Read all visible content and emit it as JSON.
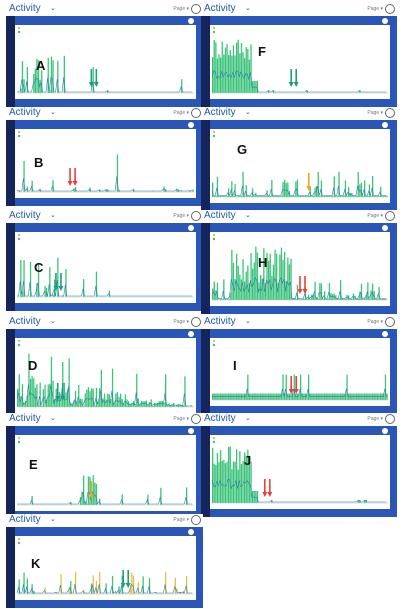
{
  "colors": {
    "bar": "#3cc47a",
    "trend": "#2e7fa8",
    "frame": "#2a56b8",
    "dark": "#16245c",
    "arrow_green": "#1d9f7f",
    "arrow_red": "#e8403a",
    "arrow_orange": "#f0a51e"
  },
  "header": {
    "title": "Activity",
    "chevron": "⌄",
    "right_text": "Page ▾",
    "clock": "◷"
  },
  "panels": [
    {
      "letter": "A",
      "arrows": {
        "color": "green",
        "count": 2
      },
      "chart_data": {
        "type": "bar",
        "pattern": "sparse-early",
        "arrow_pos": 0.42
      }
    },
    {
      "letter": "F",
      "arrows": {
        "color": "green",
        "count": 2
      },
      "chart_data": {
        "type": "bar",
        "pattern": "dense-early",
        "arrow_pos": 0.45
      }
    },
    {
      "letter": "B",
      "arrows": {
        "color": "red",
        "count": 2
      },
      "chart_data": {
        "type": "bar",
        "pattern": "sparse",
        "arrow_pos": 0.3
      }
    },
    {
      "letter": "G",
      "arrows": {
        "color": "orange",
        "count": 1
      },
      "chart_data": {
        "type": "bar",
        "pattern": "medium",
        "arrow_pos": 0.55
      }
    },
    {
      "letter": "C",
      "arrows": {
        "color": "green",
        "count": 2
      },
      "chart_data": {
        "type": "bar",
        "pattern": "sparse-early",
        "arrow_pos": 0.22
      }
    },
    {
      "letter": "H",
      "arrows": {
        "color": "red",
        "count": 2
      },
      "chart_data": {
        "type": "bar",
        "pattern": "dense-wide",
        "arrow_pos": 0.5
      }
    },
    {
      "letter": "D",
      "arrows": {
        "color": "green",
        "count": 2
      },
      "chart_data": {
        "type": "bar",
        "pattern": "dense-decay",
        "arrow_pos": 0.23
      }
    },
    {
      "letter": "I",
      "arrows": {
        "color": "red",
        "count": 2
      },
      "chart_data": {
        "type": "bar",
        "pattern": "flat-band",
        "arrow_pos": 0.45
      }
    },
    {
      "letter": "E",
      "arrows": {
        "color": "orange",
        "count": 1
      },
      "chart_data": {
        "type": "bar",
        "pattern": "sparse-mid",
        "arrow_pos": 0.42
      }
    },
    {
      "letter": "J",
      "arrows": {
        "color": "red",
        "count": 2
      },
      "chart_data": {
        "type": "bar",
        "pattern": "dense-early",
        "arrow_pos": 0.3
      }
    },
    {
      "letter": "K",
      "arrows": {
        "color": "green",
        "count": 2
      },
      "chart_data": {
        "type": "bar",
        "pattern": "sparse-yellow",
        "arrow_pos": 0.6
      }
    }
  ]
}
